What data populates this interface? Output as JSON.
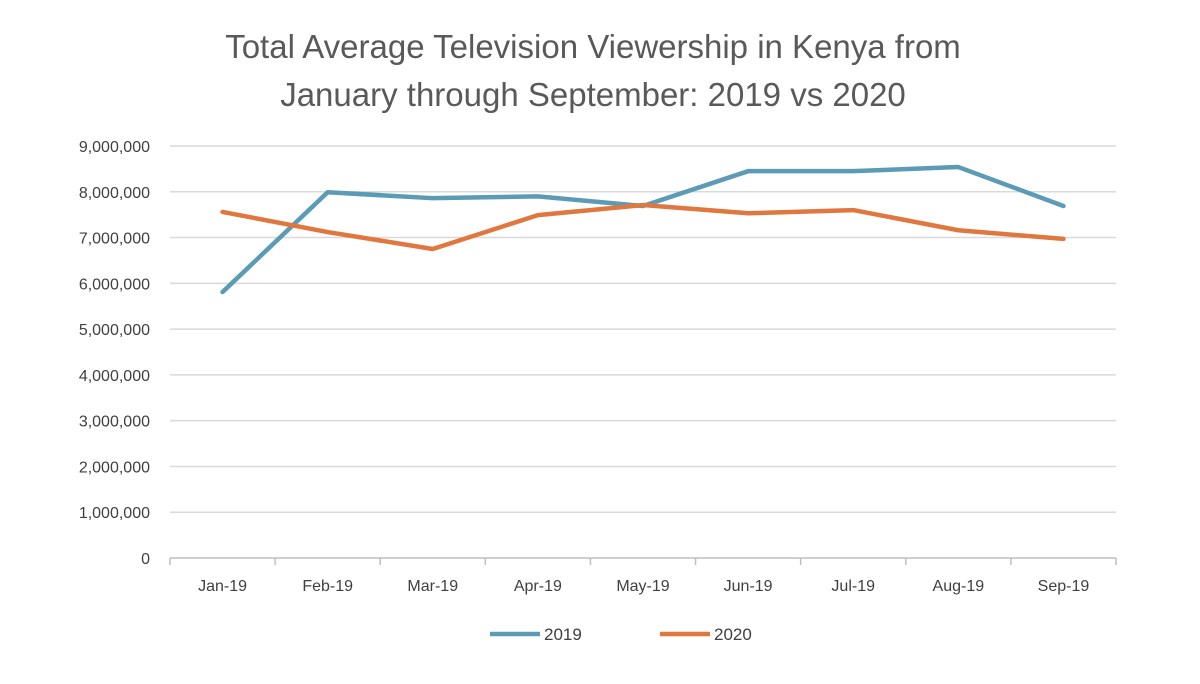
{
  "chart_data": {
    "type": "line",
    "title": [
      "Total Average Television Viewership in Kenya from",
      "January through September: 2019 vs 2020"
    ],
    "xlabel": "",
    "ylabel": "",
    "categories": [
      "Jan-19",
      "Feb-19",
      "Mar-19",
      "Apr-19",
      "May-19",
      "Jun-19",
      "Jul-19",
      "Aug-19",
      "Sep-19"
    ],
    "ylim": [
      0,
      9000000
    ],
    "yticks": [
      0,
      1000000,
      2000000,
      3000000,
      4000000,
      5000000,
      6000000,
      7000000,
      8000000,
      9000000
    ],
    "ytick_labels": [
      "0",
      "1,000,000",
      "2,000,000",
      "3,000,000",
      "4,000,000",
      "5,000,000",
      "6,000,000",
      "7,000,000",
      "8,000,000",
      "9,000,000"
    ],
    "grid": true,
    "legend_position": "bottom",
    "series": [
      {
        "name": "2019",
        "color": "#5b9bb5",
        "values": [
          5810000,
          7990000,
          7860000,
          7900000,
          7690000,
          8450000,
          8450000,
          8540000,
          7690000
        ]
      },
      {
        "name": "2020",
        "color": "#e0773f",
        "values": [
          7560000,
          7120000,
          6750000,
          7490000,
          7710000,
          7530000,
          7600000,
          7160000,
          6970000
        ]
      }
    ]
  }
}
